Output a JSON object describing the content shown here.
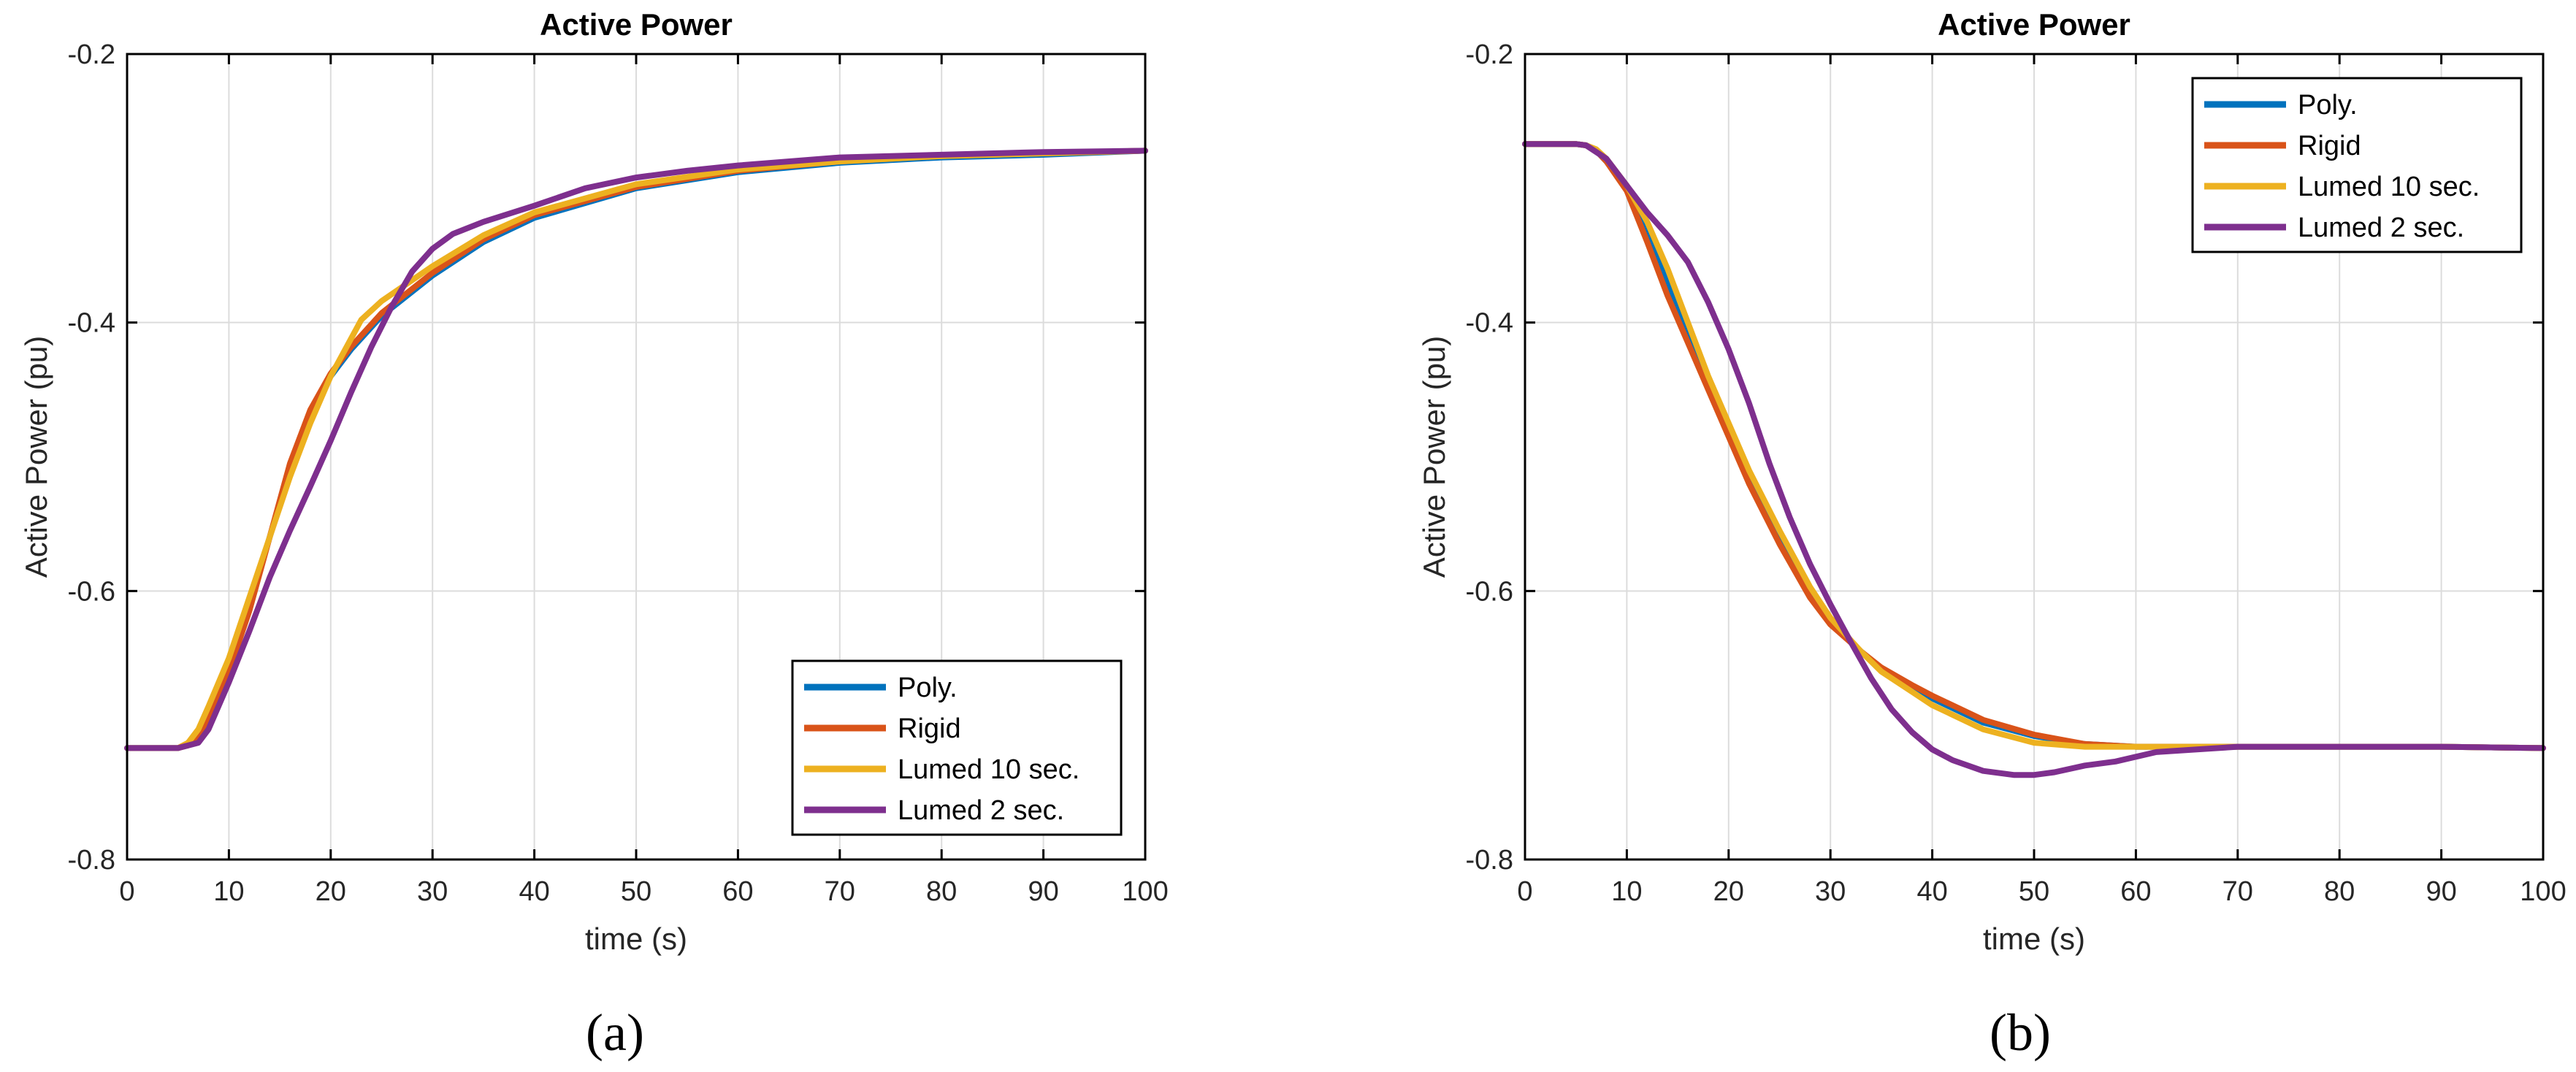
{
  "chart_data": [
    {
      "type": "line",
      "panel_label": "(a)",
      "title": "Active Power",
      "xlabel": "time (s)",
      "ylabel": "Active Power (pu)",
      "xlim": [
        0,
        100
      ],
      "ylim": [
        -0.8,
        -0.2
      ],
      "xticks": [
        "0",
        "10",
        "20",
        "30",
        "40",
        "50",
        "60",
        "70",
        "80",
        "90",
        "100"
      ],
      "yticks": [
        "-0.2",
        "-0.4",
        "-0.6",
        "-0.8"
      ],
      "grid": true,
      "legend_location": "bottom-right",
      "series": [
        {
          "name": "Poly.",
          "color": "#0072BD",
          "x": [
            0,
            5,
            6,
            7,
            8,
            10,
            12,
            14,
            16,
            18,
            20,
            22,
            25,
            30,
            35,
            40,
            50,
            60,
            70,
            80,
            90,
            100
          ],
          "y": [
            -0.717,
            -0.717,
            -0.714,
            -0.705,
            -0.69,
            -0.655,
            -0.61,
            -0.56,
            -0.51,
            -0.47,
            -0.44,
            -0.42,
            -0.395,
            -0.365,
            -0.34,
            -0.322,
            -0.3,
            -0.288,
            -0.281,
            -0.277,
            -0.275,
            -0.272
          ]
        },
        {
          "name": "Rigid",
          "color": "#D95319",
          "x": [
            0,
            5,
            6,
            7,
            8,
            10,
            12,
            14,
            16,
            18,
            20,
            22,
            25,
            30,
            35,
            40,
            50,
            60,
            70,
            80,
            90,
            100
          ],
          "y": [
            -0.717,
            -0.717,
            -0.715,
            -0.708,
            -0.695,
            -0.66,
            -0.615,
            -0.56,
            -0.505,
            -0.465,
            -0.438,
            -0.418,
            -0.393,
            -0.363,
            -0.338,
            -0.32,
            -0.299,
            -0.287,
            -0.28,
            -0.276,
            -0.274,
            -0.272
          ]
        },
        {
          "name": "Lumed 10 sec.",
          "color": "#EDB120",
          "x": [
            0,
            5,
            6,
            7,
            8,
            10,
            12,
            14,
            16,
            18,
            20,
            22,
            23,
            25,
            30,
            35,
            40,
            50,
            60,
            70,
            80,
            90,
            100
          ],
          "y": [
            -0.717,
            -0.717,
            -0.713,
            -0.703,
            -0.686,
            -0.65,
            -0.605,
            -0.56,
            -0.515,
            -0.475,
            -0.44,
            -0.412,
            -0.398,
            -0.384,
            -0.358,
            -0.335,
            -0.318,
            -0.297,
            -0.286,
            -0.28,
            -0.276,
            -0.274,
            -0.272
          ]
        },
        {
          "name": "Lumed 2 sec.",
          "color": "#7E2F8E",
          "x": [
            0,
            5,
            7,
            8,
            10,
            12,
            14,
            16,
            18,
            20,
            22,
            24,
            26,
            28,
            30,
            32,
            35,
            40,
            45,
            50,
            55,
            60,
            70,
            80,
            90,
            100
          ],
          "y": [
            -0.717,
            -0.717,
            -0.713,
            -0.703,
            -0.668,
            -0.63,
            -0.59,
            -0.555,
            -0.522,
            -0.488,
            -0.452,
            -0.418,
            -0.388,
            -0.362,
            -0.345,
            -0.334,
            -0.325,
            -0.313,
            -0.3,
            -0.292,
            -0.287,
            -0.283,
            -0.277,
            -0.275,
            -0.273,
            -0.272
          ]
        }
      ],
      "legend": [
        "Poly.",
        "Rigid",
        "Lumed 10 sec.",
        "Lumed 2 sec."
      ]
    },
    {
      "type": "line",
      "panel_label": "(b)",
      "title": "Active Power",
      "xlabel": "time (s)",
      "ylabel": "Active Power (pu)",
      "xlim": [
        0,
        100
      ],
      "ylim": [
        -0.8,
        -0.2
      ],
      "xticks": [
        "0",
        "10",
        "20",
        "30",
        "40",
        "50",
        "60",
        "70",
        "80",
        "90",
        "100"
      ],
      "yticks": [
        "-0.2",
        "-0.4",
        "-0.6",
        "-0.8"
      ],
      "grid": true,
      "legend_location": "top-right",
      "series": [
        {
          "name": "Poly.",
          "color": "#0072BD",
          "x": [
            0,
            5,
            6,
            7,
            8,
            10,
            12,
            14,
            16,
            18,
            20,
            22,
            25,
            28,
            30,
            33,
            35,
            38,
            40,
            45,
            50,
            55,
            60,
            70,
            80,
            90,
            100
          ],
          "y": [
            -0.267,
            -0.267,
            -0.268,
            -0.272,
            -0.28,
            -0.3,
            -0.33,
            -0.37,
            -0.41,
            -0.445,
            -0.48,
            -0.515,
            -0.56,
            -0.6,
            -0.622,
            -0.645,
            -0.658,
            -0.672,
            -0.68,
            -0.698,
            -0.708,
            -0.714,
            -0.716,
            -0.716,
            -0.716,
            -0.716,
            -0.717
          ]
        },
        {
          "name": "Rigid",
          "color": "#D95319",
          "x": [
            0,
            5,
            6,
            7,
            8,
            10,
            12,
            14,
            16,
            18,
            20,
            22,
            25,
            28,
            30,
            33,
            35,
            38,
            40,
            45,
            50,
            55,
            60,
            70,
            80,
            90,
            100
          ],
          "y": [
            -0.267,
            -0.267,
            -0.268,
            -0.272,
            -0.28,
            -0.302,
            -0.34,
            -0.38,
            -0.415,
            -0.45,
            -0.485,
            -0.52,
            -0.565,
            -0.605,
            -0.625,
            -0.645,
            -0.657,
            -0.67,
            -0.678,
            -0.696,
            -0.707,
            -0.714,
            -0.716,
            -0.716,
            -0.716,
            -0.716,
            -0.717
          ]
        },
        {
          "name": "Lumed 10 sec.",
          "color": "#EDB120",
          "x": [
            0,
            5,
            6,
            7,
            8,
            10,
            12,
            14,
            16,
            18,
            20,
            22,
            25,
            28,
            30,
            33,
            35,
            38,
            40,
            45,
            50,
            55,
            60,
            70,
            80,
            90,
            100
          ],
          "y": [
            -0.267,
            -0.267,
            -0.268,
            -0.271,
            -0.278,
            -0.298,
            -0.325,
            -0.36,
            -0.4,
            -0.44,
            -0.475,
            -0.51,
            -0.555,
            -0.597,
            -0.62,
            -0.645,
            -0.66,
            -0.675,
            -0.685,
            -0.703,
            -0.713,
            -0.716,
            -0.716,
            -0.716,
            -0.716,
            -0.716,
            -0.717
          ]
        },
        {
          "name": "Lumed 2 sec.",
          "color": "#7E2F8E",
          "x": [
            0,
            5,
            6,
            8,
            10,
            12,
            14,
            16,
            18,
            20,
            22,
            24,
            26,
            28,
            30,
            32,
            34,
            36,
            38,
            40,
            42,
            45,
            48,
            50,
            52,
            55,
            58,
            62,
            66,
            70,
            80,
            90,
            100
          ],
          "y": [
            -0.267,
            -0.267,
            -0.268,
            -0.278,
            -0.298,
            -0.318,
            -0.335,
            -0.355,
            -0.385,
            -0.42,
            -0.46,
            -0.505,
            -0.545,
            -0.58,
            -0.61,
            -0.638,
            -0.665,
            -0.688,
            -0.705,
            -0.718,
            -0.726,
            -0.734,
            -0.737,
            -0.737,
            -0.735,
            -0.73,
            -0.727,
            -0.72,
            -0.718,
            -0.716,
            -0.716,
            -0.716,
            -0.717
          ]
        }
      ],
      "legend": [
        "Poly.",
        "Rigid",
        "Lumed 10 sec.",
        "Lumed 2 sec."
      ]
    }
  ]
}
